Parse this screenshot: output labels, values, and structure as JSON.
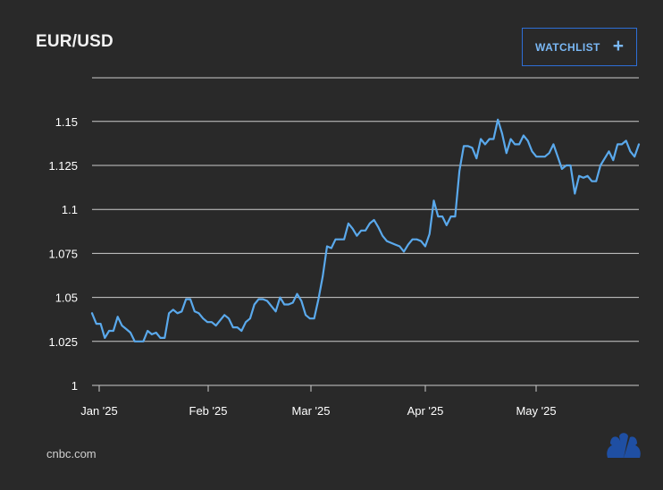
{
  "header": {
    "title": "EUR/USD",
    "watchlist_label": "WATCHLIST",
    "watchlist_icon": "plus-icon"
  },
  "footer": {
    "source": "cnbc.com",
    "logo_icon": "peacock-logo-icon"
  },
  "colors": {
    "background": "#292929",
    "line": "#5aa9ec",
    "grid": "#cccccc",
    "accent_border": "#2e6ed6",
    "logo": "#1f4fa3"
  },
  "chart_data": {
    "type": "line",
    "title": "EUR/USD",
    "xlabel": "",
    "ylabel": "",
    "ylim": [
      1.0,
      1.175
    ],
    "y_ticks": [
      1,
      1.025,
      1.05,
      1.075,
      1.1,
      1.125,
      1.15
    ],
    "y_tick_labels": [
      "1",
      "1.025",
      "1.05",
      "1.075",
      "1.1",
      "1.125",
      "1.15"
    ],
    "x_ticks": [
      "Jan '25",
      "Feb '25",
      "Mar '25",
      "Apr '25",
      "May '25"
    ],
    "grid": true,
    "series": [
      {
        "values": [
          1.041,
          1.035,
          1.035,
          1.027,
          1.031,
          1.031,
          1.039,
          1.034,
          1.032,
          1.03,
          1.025,
          1.025,
          1.025,
          1.031,
          1.029,
          1.03,
          1.027,
          1.027,
          1.041,
          1.043,
          1.041,
          1.042,
          1.049,
          1.049,
          1.042,
          1.041,
          1.038,
          1.036,
          1.036,
          1.034,
          1.037,
          1.04,
          1.038,
          1.033,
          1.033,
          1.031,
          1.036,
          1.038,
          1.046,
          1.049,
          1.049,
          1.048,
          1.045,
          1.042,
          1.05,
          1.046,
          1.046,
          1.047,
          1.052,
          1.048,
          1.04,
          1.038,
          1.038,
          1.049,
          1.062,
          1.079,
          1.078,
          1.083,
          1.083,
          1.083,
          1.092,
          1.089,
          1.085,
          1.088,
          1.088,
          1.092,
          1.094,
          1.09,
          1.085,
          1.082,
          1.081,
          1.08,
          1.079,
          1.076,
          1.08,
          1.083,
          1.083,
          1.082,
          1.079,
          1.086,
          1.105,
          1.096,
          1.096,
          1.091,
          1.096,
          1.096,
          1.122,
          1.136,
          1.136,
          1.135,
          1.129,
          1.14,
          1.137,
          1.14,
          1.14,
          1.151,
          1.143,
          1.132,
          1.14,
          1.137,
          1.137,
          1.142,
          1.139,
          1.133,
          1.13,
          1.13,
          1.13,
          1.132,
          1.137,
          1.13,
          1.123,
          1.125,
          1.125,
          1.109,
          1.119,
          1.118,
          1.119,
          1.116,
          1.116,
          1.125,
          1.129,
          1.133,
          1.128,
          1.137,
          1.137,
          1.139,
          1.133,
          1.13,
          1.137
        ]
      }
    ]
  }
}
